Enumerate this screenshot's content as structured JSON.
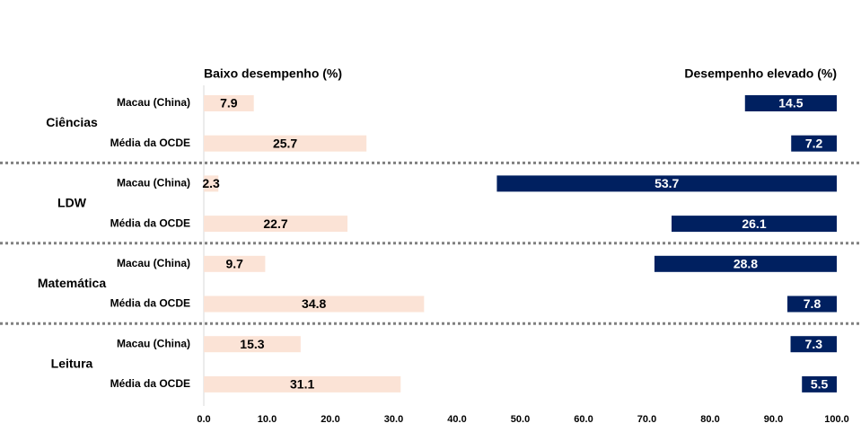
{
  "chart_data": {
    "type": "bar",
    "groups": [
      "Ciências",
      "LDW",
      "Matemática",
      "Leitura"
    ],
    "categories": [
      "Macau (China)",
      "Média da OCDE",
      "Macau (China)",
      "Média da OCDE",
      "Macau (China)",
      "Média da OCDE",
      "Macau (China)",
      "Média da OCDE"
    ],
    "series": [
      {
        "name": "Baixo desempenho (%)",
        "color": "#fbe3d6",
        "values": [
          7.9,
          25.7,
          2.3,
          22.7,
          9.7,
          34.8,
          15.3,
          31.1
        ]
      },
      {
        "name": "Desempenho elevado (%)",
        "color": "#002060",
        "values": [
          14.5,
          7.2,
          53.7,
          26.1,
          28.8,
          7.8,
          7.3,
          5.5
        ]
      }
    ],
    "xlim": [
      0,
      100
    ],
    "xticks": [
      {
        "value": 0,
        "label": "0.0"
      },
      {
        "value": 10,
        "label": "10.0"
      },
      {
        "value": 20,
        "label": "20.0"
      },
      {
        "value": 30,
        "label": "30.0"
      },
      {
        "value": 40,
        "label": "40.0"
      },
      {
        "value": 50,
        "label": "50.0"
      },
      {
        "value": 60,
        "label": "60.0"
      },
      {
        "value": 70,
        "label": "70.0"
      },
      {
        "value": 80,
        "label": "80.0"
      },
      {
        "value": 90,
        "label": "90.0"
      },
      {
        "value": 100,
        "label": "100.0"
      }
    ]
  }
}
